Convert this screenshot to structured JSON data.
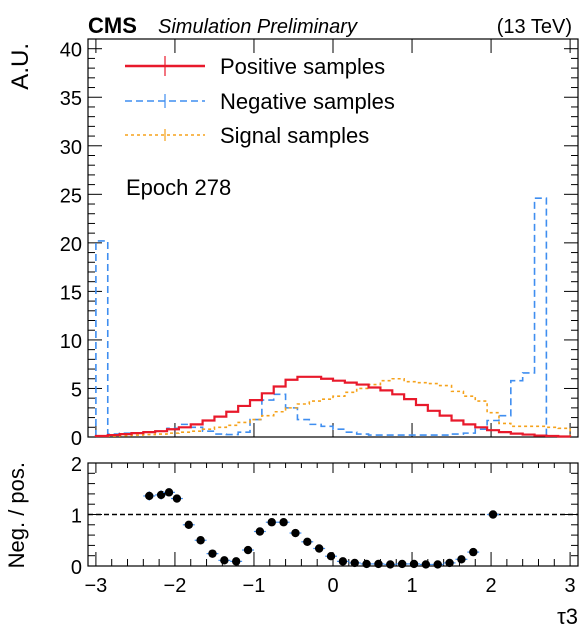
{
  "header": {
    "experiment": "CMS",
    "status": "Simulation Preliminary",
    "energy": "(13 TeV)"
  },
  "annotation": "Epoch 278",
  "colors": {
    "positive": "#e8192b",
    "negative": "#3f8ef0",
    "signal": "#f5a21b",
    "ratio_points": "#000000",
    "ratio_errors": "#3f8ef0"
  },
  "chart_data": [
    {
      "type": "histogram",
      "ylabel": "A.U.",
      "xlim": [
        -3.1,
        3.1
      ],
      "ylim": [
        0,
        41
      ],
      "yticks": [
        "0",
        "5",
        "10",
        "15",
        "20",
        "25",
        "30",
        "35",
        "40"
      ],
      "legend_position": "top-left",
      "bin_edges": [
        -3.0,
        -2.85,
        -2.7,
        -2.55,
        -2.4,
        -2.25,
        -2.1,
        -1.95,
        -1.8,
        -1.65,
        -1.5,
        -1.35,
        -1.2,
        -1.05,
        -0.9,
        -0.75,
        -0.6,
        -0.45,
        -0.3,
        -0.15,
        0.0,
        0.15,
        0.3,
        0.45,
        0.6,
        0.75,
        0.9,
        1.05,
        1.2,
        1.35,
        1.5,
        1.65,
        1.8,
        1.95,
        2.1,
        2.25,
        2.4,
        2.55,
        2.7,
        2.85,
        3.0
      ],
      "series": [
        {
          "name": "Positive samples",
          "style": "solid",
          "values": [
            0.1,
            0.2,
            0.3,
            0.4,
            0.5,
            0.6,
            0.8,
            1.0,
            1.3,
            1.7,
            2.1,
            2.6,
            3.2,
            3.8,
            4.5,
            5.2,
            5.9,
            6.2,
            6.2,
            6.0,
            5.8,
            5.6,
            5.4,
            5.1,
            4.8,
            4.4,
            3.9,
            3.3,
            2.7,
            2.2,
            1.7,
            1.3,
            1.0,
            0.7,
            0.5,
            0.35,
            0.25,
            0.15,
            0.1,
            0.05
          ]
        },
        {
          "name": "Negative samples",
          "style": "dashed",
          "values": [
            20.2,
            0.3,
            0.4,
            0.4,
            0.5,
            0.6,
            0.9,
            1.3,
            1.0,
            0.6,
            0.3,
            0.25,
            0.5,
            1.8,
            3.8,
            4.4,
            3.0,
            1.8,
            1.3,
            1.1,
            0.8,
            0.5,
            0.3,
            0.2,
            0.2,
            0.2,
            0.2,
            0.2,
            0.2,
            0.2,
            0.3,
            0.4,
            0.8,
            1.7,
            2.2,
            5.8,
            6.6,
            24.6,
            0.1,
            0.05
          ]
        },
        {
          "name": "Signal samples",
          "style": "dotted",
          "values": [
            0.1,
            0.1,
            0.15,
            0.2,
            0.25,
            0.3,
            0.4,
            0.5,
            0.6,
            0.8,
            1.0,
            1.2,
            1.5,
            1.8,
            2.2,
            2.6,
            3.0,
            3.4,
            3.7,
            3.9,
            4.2,
            4.6,
            5.0,
            5.4,
            5.8,
            6.0,
            5.7,
            5.6,
            5.5,
            5.3,
            4.7,
            4.2,
            3.7,
            2.5,
            1.4,
            1.1,
            1.1,
            1.1,
            1.0,
            0.9
          ]
        }
      ]
    },
    {
      "type": "scatter",
      "xlabel": "τ3",
      "ylabel": "Neg. / pos.",
      "xlim": [
        -3.1,
        3.1
      ],
      "ylim": [
        0,
        2
      ],
      "yticks": [
        "0",
        "1",
        "2"
      ],
      "xticks": [
        "−3",
        "−2",
        "−1",
        "0",
        "1",
        "2",
        "3"
      ],
      "reference_line": 1,
      "x": [
        -2.325,
        -2.175,
        -2.075,
        -1.975,
        -1.825,
        -1.675,
        -1.525,
        -1.375,
        -1.225,
        -1.075,
        -0.925,
        -0.775,
        -0.625,
        -0.475,
        -0.325,
        -0.175,
        -0.025,
        0.125,
        0.275,
        0.425,
        0.575,
        0.725,
        0.875,
        1.025,
        1.175,
        1.325,
        1.475,
        1.625,
        1.775,
        2.025
      ],
      "y": [
        1.36,
        1.38,
        1.43,
        1.31,
        0.8,
        0.5,
        0.24,
        0.11,
        0.09,
        0.31,
        0.67,
        0.85,
        0.85,
        0.64,
        0.47,
        0.34,
        0.19,
        0.09,
        0.06,
        0.04,
        0.04,
        0.03,
        0.04,
        0.04,
        0.03,
        0.03,
        0.06,
        0.13,
        0.27,
        1.0
      ],
      "y_err": [
        0.09,
        0.09,
        0.08,
        0.07,
        0.05,
        0.04,
        0.03,
        0.02,
        0.02,
        0.03,
        0.04,
        0.04,
        0.04,
        0.03,
        0.03,
        0.02,
        0.02,
        0.02,
        0.02,
        0.01,
        0.01,
        0.01,
        0.01,
        0.01,
        0.01,
        0.01,
        0.01,
        0.02,
        0.03,
        0.05
      ]
    }
  ]
}
